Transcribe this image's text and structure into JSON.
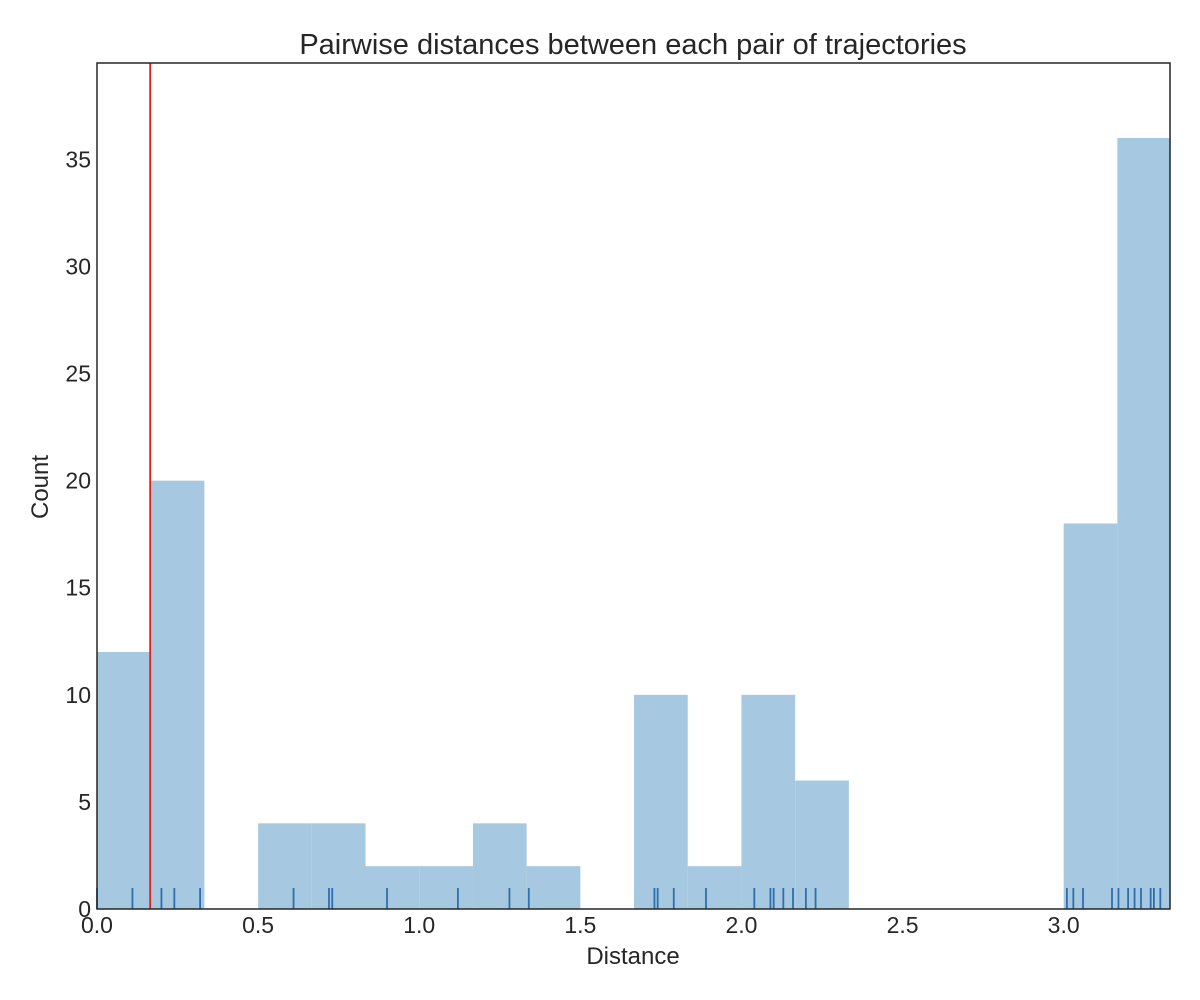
{
  "chart_data": {
    "type": "bar",
    "title": "Pairwise distances between each pair of trajectories",
    "xlabel": "Distance",
    "ylabel": "Count",
    "xlim": [
      0,
      3.33
    ],
    "ylim": [
      0,
      39.5
    ],
    "grid": false,
    "bin_width": 0.1667,
    "bins": [
      {
        "x0": 0.0,
        "x1": 0.1667,
        "count": 12
      },
      {
        "x0": 0.1667,
        "x1": 0.3333,
        "count": 20
      },
      {
        "x0": 0.3333,
        "x1": 0.5,
        "count": 0
      },
      {
        "x0": 0.5,
        "x1": 0.6667,
        "count": 4
      },
      {
        "x0": 0.6667,
        "x1": 0.8333,
        "count": 4
      },
      {
        "x0": 0.8333,
        "x1": 1.0,
        "count": 2
      },
      {
        "x0": 1.0,
        "x1": 1.1667,
        "count": 2
      },
      {
        "x0": 1.1667,
        "x1": 1.3333,
        "count": 4
      },
      {
        "x0": 1.3333,
        "x1": 1.5,
        "count": 2
      },
      {
        "x0": 1.5,
        "x1": 1.6667,
        "count": 0
      },
      {
        "x0": 1.6667,
        "x1": 1.8333,
        "count": 10
      },
      {
        "x0": 1.8333,
        "x1": 2.0,
        "count": 2
      },
      {
        "x0": 2.0,
        "x1": 2.1667,
        "count": 10
      },
      {
        "x0": 2.1667,
        "x1": 2.3333,
        "count": 6
      },
      {
        "x0": 2.3333,
        "x1": 2.5,
        "count": 0
      },
      {
        "x0": 2.5,
        "x1": 2.6667,
        "count": 0
      },
      {
        "x0": 2.6667,
        "x1": 2.8333,
        "count": 0
      },
      {
        "x0": 2.8333,
        "x1": 3.0,
        "count": 0
      },
      {
        "x0": 3.0,
        "x1": 3.1667,
        "count": 18
      },
      {
        "x0": 3.1667,
        "x1": 3.3333,
        "count": 36
      }
    ],
    "rug": [
      0.0,
      0.11,
      0.2,
      0.24,
      0.32,
      0.61,
      0.72,
      0.73,
      0.9,
      1.12,
      1.28,
      1.34,
      1.73,
      1.74,
      1.79,
      1.89,
      2.04,
      2.09,
      2.1,
      2.13,
      2.16,
      2.2,
      2.23,
      3.01,
      3.03,
      3.06,
      3.15,
      3.17,
      3.2,
      3.22,
      3.24,
      3.27,
      3.28,
      3.3
    ],
    "threshold_line": 0.165,
    "xticks": [
      0.0,
      0.5,
      1.0,
      1.5,
      2.0,
      2.5,
      3.0
    ],
    "xtick_labels": [
      "0.0",
      "0.5",
      "1.0",
      "1.5",
      "2.0",
      "2.5",
      "3.0"
    ],
    "yticks": [
      0,
      5,
      10,
      15,
      20,
      25,
      30,
      35
    ],
    "ytick_labels": [
      "0",
      "5",
      "10",
      "15",
      "20",
      "25",
      "30",
      "35"
    ],
    "colors": {
      "bar": "#a6c8e0",
      "rug": "#2d6fae",
      "threshold": "#e0201b",
      "axes": "#262626"
    }
  }
}
